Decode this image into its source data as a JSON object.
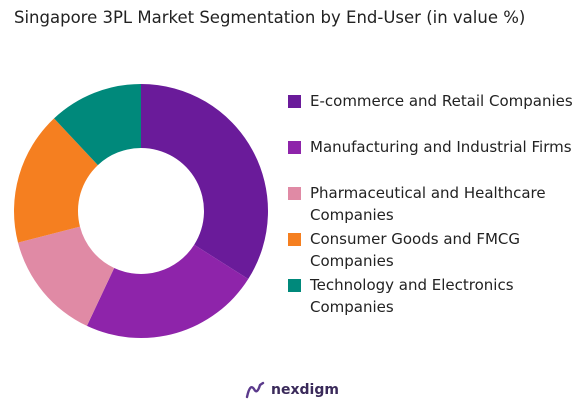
{
  "chart_data": {
    "type": "pie",
    "title": "Singapore 3PL Market Segmentation by End-User (in value %)",
    "donut": true,
    "legend_position": "right",
    "categories": [
      "E-commerce and Retail Companies",
      "Manufacturing and Industrial Firms",
      "Pharmaceutical and Healthcare Companies",
      "Consumer Goods and FMCG Companies",
      "Technology and Electronics Companies"
    ],
    "values": [
      34,
      23,
      14,
      17,
      12
    ],
    "colors": [
      "#6a1b9a",
      "#8e24aa",
      "#e08aa5",
      "#f57f20",
      "#00897b"
    ]
  },
  "brand": {
    "name": "nexdigm"
  }
}
